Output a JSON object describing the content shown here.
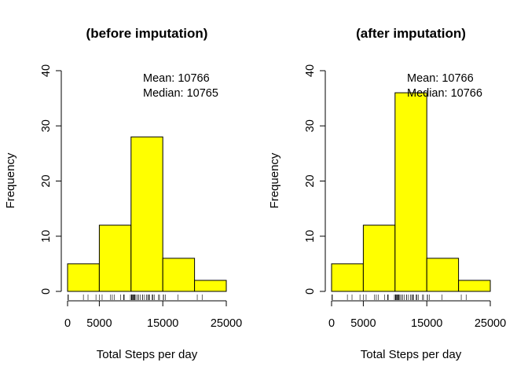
{
  "chart_data": [
    {
      "type": "bar",
      "title": "(before imputation)",
      "xlabel": "Total Steps per day",
      "ylabel": "Frequency",
      "bin_edges": [
        0,
        5000,
        10000,
        15000,
        20000,
        25000
      ],
      "values": [
        5,
        12,
        28,
        6,
        2
      ],
      "xlim": [
        0,
        25000
      ],
      "ylim": [
        0,
        40
      ],
      "x_ticks": [
        0,
        5000,
        15000,
        25000
      ],
      "y_ticks": [
        0,
        10,
        20,
        30,
        40
      ],
      "bar_color": "#ffff00",
      "annotations": [
        "Mean: 10766",
        "Median: 10765"
      ],
      "rug": [
        41,
        126,
        2492,
        3219,
        4472,
        5018,
        5441,
        6778,
        7047,
        7336,
        8355,
        8821,
        8841,
        8918,
        9900,
        10056,
        10119,
        10139,
        10183,
        10304,
        10395,
        10439,
        10571,
        10600,
        10765,
        11015,
        11162,
        11458,
        11829,
        11834,
        12116,
        12426,
        12608,
        12787,
        12811,
        12883,
        13294,
        13452,
        13460,
        13646,
        14339,
        14478,
        15084,
        15098,
        15110,
        15414,
        17382,
        20427,
        21194
      ]
    },
    {
      "type": "bar",
      "title": "(after imputation)",
      "xlabel": "Total Steps per day",
      "ylabel": "Frequency",
      "bin_edges": [
        0,
        5000,
        10000,
        15000,
        20000,
        25000
      ],
      "values": [
        5,
        12,
        36,
        6,
        2
      ],
      "xlim": [
        0,
        25000
      ],
      "ylim": [
        0,
        40
      ],
      "x_ticks": [
        0,
        5000,
        15000,
        25000
      ],
      "y_ticks": [
        0,
        10,
        20,
        30,
        40
      ],
      "bar_color": "#ffff00",
      "annotations": [
        "Mean: 10766",
        "Median: 10766"
      ],
      "rug": [
        41,
        126,
        2492,
        3219,
        4472,
        5018,
        5441,
        6778,
        7047,
        7336,
        8355,
        8821,
        8841,
        8918,
        9900,
        10056,
        10119,
        10139,
        10183,
        10304,
        10395,
        10439,
        10571,
        10600,
        10765,
        10766,
        11015,
        11162,
        11458,
        11829,
        11834,
        12116,
        12426,
        12608,
        12787,
        12811,
        12883,
        13294,
        13452,
        13460,
        13646,
        14339,
        14478,
        15084,
        15098,
        15110,
        15414,
        17382,
        20427,
        21194
      ]
    }
  ]
}
